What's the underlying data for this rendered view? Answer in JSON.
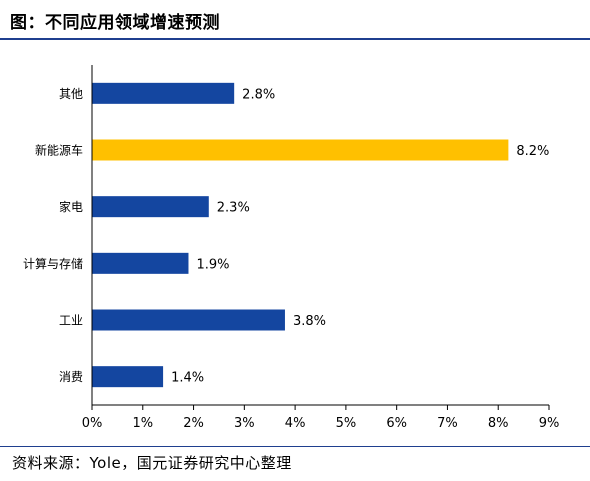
{
  "header": {
    "title": "图：不同应用领域增速预测"
  },
  "footer": {
    "source": "资料来源：Yole，国元证券研究中心整理"
  },
  "chart_data": {
    "type": "bar",
    "orientation": "horizontal",
    "title": "",
    "xlabel": "",
    "ylabel": "",
    "categories": [
      "其他",
      "新能源车",
      "家电",
      "计算与存储",
      "工业",
      "消费"
    ],
    "values": [
      2.8,
      8.2,
      2.3,
      1.9,
      3.8,
      1.4
    ],
    "data_labels": [
      "2.8%",
      "8.2%",
      "2.3%",
      "1.9%",
      "3.8%",
      "1.4%"
    ],
    "x_ticks": [
      0,
      1,
      2,
      3,
      4,
      5,
      6,
      7,
      8,
      9
    ],
    "x_tick_labels": [
      "0%",
      "1%",
      "2%",
      "3%",
      "4%",
      "5%",
      "6%",
      "7%",
      "8%",
      "9%"
    ],
    "xlim": [
      0,
      9
    ],
    "unit": "%",
    "grid": false,
    "colors": {
      "default": "#1446a0",
      "highlight": "#ffc000",
      "axis": "#000000"
    },
    "highlight_category": "新能源车"
  }
}
